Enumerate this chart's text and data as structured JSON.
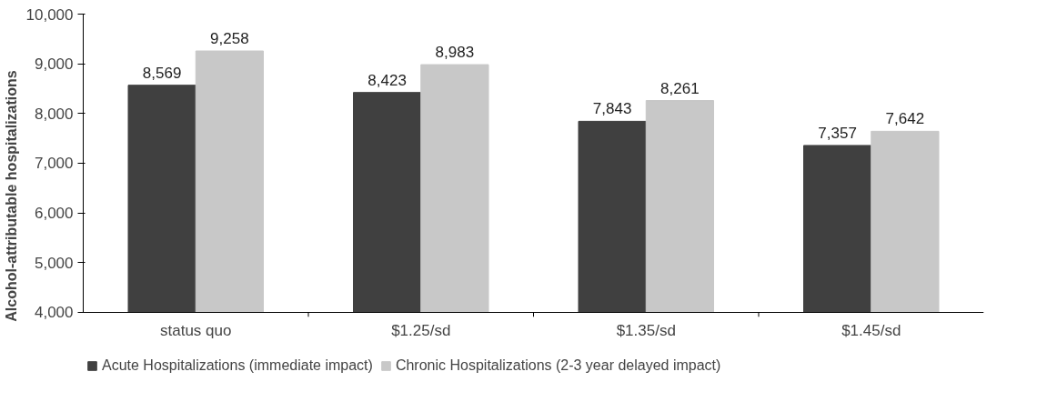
{
  "chart_data": {
    "type": "bar",
    "ylabel": "Alcohol-attributable hospitalizations",
    "categories": [
      "status quo",
      "$1.25/sd",
      "$1.35/sd",
      "$1.45/sd"
    ],
    "series": [
      {
        "name": "Acute Hospitalizations (immediate impact)",
        "color": "#404040",
        "values": [
          8569,
          8423,
          7843,
          7357
        ],
        "value_labels": [
          "8,569",
          "8,423",
          "7,843",
          "7,357"
        ]
      },
      {
        "name": "Chronic Hospitalizations (2-3 year delayed impact)",
        "color": "#c8c8c8",
        "values": [
          9258,
          8983,
          8261,
          7642
        ],
        "value_labels": [
          "9,258",
          "8,983",
          "8,261",
          "7,642"
        ]
      }
    ],
    "ylim": [
      4000,
      10000
    ],
    "yticks": [
      {
        "value": 4000,
        "label": "4,000"
      },
      {
        "value": 5000,
        "label": "5,000"
      },
      {
        "value": 6000,
        "label": "6,000"
      },
      {
        "value": 7000,
        "label": "7,000"
      },
      {
        "value": 8000,
        "label": "8,000"
      },
      {
        "value": 9000,
        "label": "9,000"
      },
      {
        "value": 10000,
        "label": "10,000"
      }
    ],
    "legend": "bottom left",
    "grid": false
  }
}
